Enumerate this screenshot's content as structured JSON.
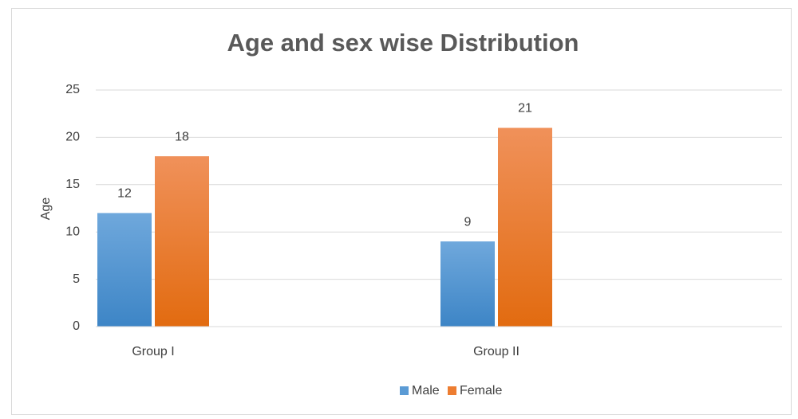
{
  "chart_data": {
    "type": "bar",
    "title": "Age and sex wise Distribution",
    "ylabel": "Age",
    "categories": [
      "Group I",
      "Group II"
    ],
    "series": [
      {
        "name": "Male",
        "color": "#5b9bd5",
        "values": [
          12,
          9
        ]
      },
      {
        "name": "Female",
        "color": "#ed7d31",
        "values": [
          18,
          21
        ]
      }
    ],
    "ylim": [
      0,
      25
    ],
    "yticks": [
      0,
      5,
      10,
      15,
      20,
      25
    ],
    "grid": true,
    "legend": "bottom"
  }
}
